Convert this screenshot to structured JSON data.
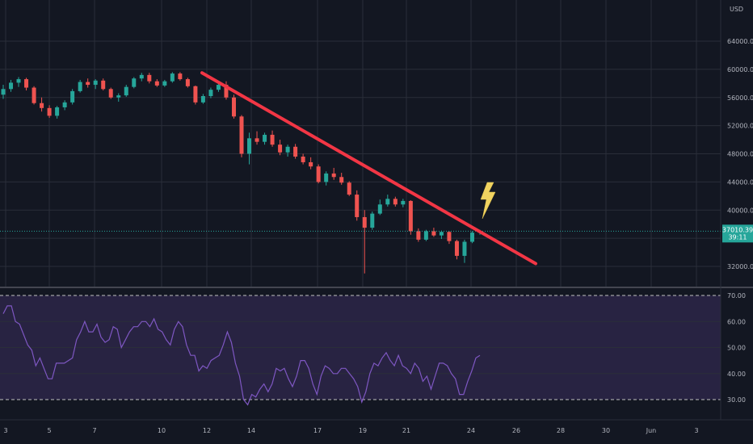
{
  "header": {
    "currency_label": "USD"
  },
  "chart_data": {
    "type": "candlestick",
    "y_ticks": [
      32000,
      36000,
      40000,
      44000,
      48000,
      52000,
      56000,
      60000,
      64000
    ],
    "y_tick_labels": [
      "32000.00",
      "36000.00",
      "40000.00",
      "44000.00",
      "48000.00",
      "52000.00",
      "56000.00",
      "60000.00",
      "64000.00"
    ],
    "x_ticks": [
      "3",
      "5",
      "7",
      "10",
      "12",
      "14",
      "17",
      "19",
      "21",
      "24",
      "26",
      "28",
      "30",
      "Jun",
      "3"
    ],
    "current_price": {
      "value": 37010.39,
      "label": "37010.39",
      "countdown": "39:11"
    },
    "trendline": {
      "from_price": 59500,
      "to_price": 32400
    },
    "rsi": {
      "y_ticks": [
        30,
        40,
        50,
        60,
        70
      ],
      "y_tick_labels": [
        "30.00",
        "40.00",
        "50.00",
        "60.00",
        "70.00"
      ],
      "upper_band": 70,
      "lower_band": 30,
      "values": [
        63,
        66,
        66,
        60,
        59,
        55,
        51,
        49,
        43,
        46,
        42,
        38,
        38,
        44,
        44,
        44,
        45,
        46,
        53,
        56,
        60,
        56,
        56,
        59,
        54,
        52,
        53,
        58,
        57,
        50,
        53,
        56,
        58,
        58,
        60,
        60,
        58,
        61,
        57,
        56,
        53,
        51,
        57,
        60,
        58,
        51,
        47,
        47,
        41,
        43,
        42,
        45,
        46,
        47,
        51,
        56,
        52,
        44,
        39,
        30,
        28,
        32,
        31,
        34,
        36,
        33,
        36,
        42,
        41,
        42,
        38,
        35,
        39,
        45,
        45,
        42,
        36,
        32,
        39,
        43,
        42,
        40,
        40,
        42,
        42,
        40,
        38,
        35,
        29,
        33,
        40,
        44,
        43,
        46,
        48,
        45,
        43,
        47,
        43,
        42,
        40,
        44,
        42,
        37,
        39,
        34,
        39,
        44,
        44,
        43,
        40,
        38,
        32,
        32,
        37,
        41,
        46,
        47
      ],
      "color": "#7e57c2"
    },
    "candles": [
      [
        56400,
        57800,
        55800,
        57200
      ],
      [
        57200,
        58500,
        56800,
        58100
      ],
      [
        58100,
        58900,
        57500,
        58600
      ],
      [
        58600,
        58800,
        57000,
        57400
      ],
      [
        57400,
        57600,
        55000,
        55200
      ],
      [
        55200,
        56000,
        54000,
        54500
      ],
      [
        54500,
        54900,
        53100,
        53400
      ],
      [
        53400,
        54800,
        53000,
        54600
      ],
      [
        54600,
        55600,
        54200,
        55300
      ],
      [
        55300,
        57200,
        55000,
        56900
      ],
      [
        56900,
        58500,
        56700,
        58200
      ],
      [
        58200,
        58700,
        57400,
        57800
      ],
      [
        57800,
        58600,
        57200,
        58400
      ],
      [
        58400,
        58700,
        57000,
        57200
      ],
      [
        57200,
        57400,
        55800,
        56000
      ],
      [
        56000,
        56600,
        55400,
        56300
      ],
      [
        56300,
        57800,
        56100,
        57500
      ],
      [
        57500,
        58900,
        57300,
        58700
      ],
      [
        58700,
        59500,
        58300,
        59200
      ],
      [
        59200,
        59500,
        58000,
        58300
      ],
      [
        58300,
        58600,
        57500,
        57700
      ],
      [
        57700,
        58500,
        57500,
        58300
      ],
      [
        58300,
        59600,
        58100,
        59400
      ],
      [
        59400,
        59600,
        58400,
        58600
      ],
      [
        58600,
        58800,
        57400,
        57600
      ],
      [
        57600,
        57700,
        55000,
        55300
      ],
      [
        55300,
        56500,
        55100,
        56200
      ],
      [
        56200,
        57400,
        55900,
        57100
      ],
      [
        57100,
        58100,
        56800,
        57800
      ],
      [
        57800,
        58300,
        55700,
        56000
      ],
      [
        56000,
        56400,
        53000,
        53300
      ],
      [
        53300,
        53500,
        47500,
        48000
      ],
      [
        48000,
        51000,
        46500,
        50200
      ],
      [
        50200,
        51200,
        49300,
        49700
      ],
      [
        49700,
        51000,
        49300,
        50700
      ],
      [
        50700,
        51300,
        49000,
        49300
      ],
      [
        49300,
        50000,
        47800,
        48200
      ],
      [
        48200,
        49300,
        47600,
        49000
      ],
      [
        49000,
        49400,
        47300,
        47600
      ],
      [
        47600,
        48000,
        46500,
        46800
      ],
      [
        46800,
        47500,
        45800,
        46200
      ],
      [
        46200,
        46500,
        43800,
        44000
      ],
      [
        44000,
        45500,
        43500,
        45200
      ],
      [
        45200,
        46000,
        44300,
        44700
      ],
      [
        44700,
        45300,
        43600,
        43900
      ],
      [
        43900,
        44100,
        42000,
        42200
      ],
      [
        42200,
        42800,
        38500,
        39000
      ],
      [
        39000,
        40000,
        31000,
        37500
      ],
      [
        37500,
        39800,
        37200,
        39500
      ],
      [
        39500,
        41500,
        39300,
        40800
      ],
      [
        40800,
        42200,
        40500,
        41600
      ],
      [
        41600,
        41900,
        40500,
        40800
      ],
      [
        40800,
        41600,
        40400,
        41300
      ],
      [
        41300,
        41400,
        36500,
        37000
      ],
      [
        37000,
        37400,
        35500,
        35800
      ],
      [
        35800,
        37200,
        35600,
        37000
      ],
      [
        37000,
        37500,
        36200,
        36400
      ],
      [
        36400,
        37100,
        35900,
        36900
      ],
      [
        36900,
        37000,
        35200,
        35600
      ],
      [
        35600,
        35800,
        33000,
        33500
      ],
      [
        33500,
        35800,
        32500,
        35500
      ],
      [
        35500,
        37000,
        35300,
        36800
      ],
      [
        36800,
        37200,
        36500,
        37010
      ]
    ]
  }
}
